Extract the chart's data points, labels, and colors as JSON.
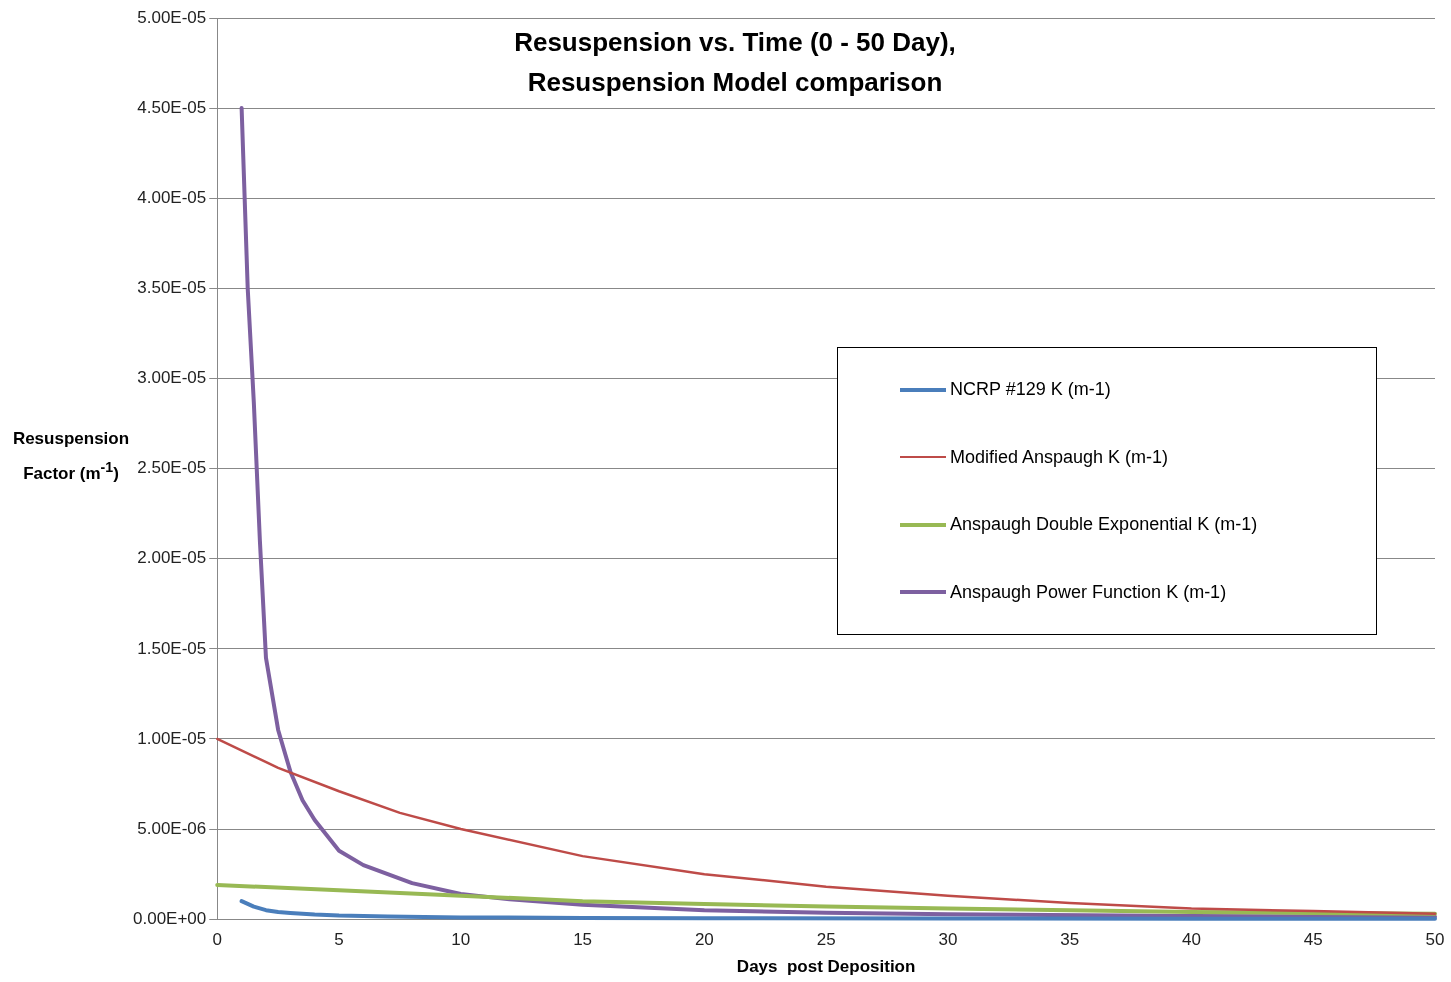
{
  "chart_data": {
    "type": "line",
    "title": "Resuspension vs. Time (0 - 50 Day), Resuspension Model comparison",
    "xlabel": "Days  post Deposition",
    "ylabel": "Resuspension Factor (m$^{-1}$)",
    "xlim": [
      0,
      50
    ],
    "xticks": [
      0,
      5,
      10,
      15,
      20,
      25,
      30,
      35,
      40,
      45,
      50
    ],
    "ylim": [
      0,
      5e-05
    ],
    "yticks": [
      {
        "value": 0,
        "label": "0.00E+00"
      },
      {
        "value": 5e-06,
        "label": "5.00E-06"
      },
      {
        "value": 1e-05,
        "label": "1.00E-05"
      },
      {
        "value": 1.5e-05,
        "label": "1.50E-05"
      },
      {
        "value": 2e-05,
        "label": "2.00E-05"
      },
      {
        "value": 2.5e-05,
        "label": "2.50E-05"
      },
      {
        "value": 3e-05,
        "label": "3.00E-05"
      },
      {
        "value": 3.5e-05,
        "label": "3.50E-05"
      },
      {
        "value": 4e-05,
        "label": "4.00E-05"
      },
      {
        "value": 4.5e-05,
        "label": "4.50E-05"
      },
      {
        "value": 5e-05,
        "label": "5.00E-05"
      }
    ],
    "grid": "y",
    "legend": "right",
    "marker": "none",
    "line_style": "solid",
    "series": [
      {
        "name": "NCRP #129 K (m-1)",
        "color": "#4a7ebb",
        "x": [
          1,
          1.5,
          2,
          2.5,
          3,
          4,
          5,
          7,
          10,
          15,
          20,
          30,
          40,
          50
        ],
        "values": [
          1e-06,
          7e-07,
          5e-07,
          4e-07,
          3.5e-07,
          2.6e-07,
          2e-07,
          1.5e-07,
          1e-07,
          7e-08,
          5e-08,
          4e-08,
          3e-08,
          2e-08
        ]
      },
      {
        "name": "Modified Anspaugh K (m-1)",
        "color": "#be4b48",
        "x": [
          0,
          2.5,
          5,
          7.5,
          10,
          15,
          20,
          25,
          30,
          35,
          40,
          45,
          50
        ],
        "values": [
          1e-05,
          8.4e-06,
          7.1e-06,
          5.9e-06,
          5e-06,
          3.5e-06,
          2.5e-06,
          1.8e-06,
          1.3e-06,
          9e-07,
          6e-07,
          4.5e-07,
          3e-07
        ]
      },
      {
        "name": "Anspaugh Double Exponential K (m-1)",
        "color": "#98b954",
        "x": [
          0,
          5,
          10,
          15,
          20,
          25,
          30,
          35,
          40,
          45,
          50
        ],
        "values": [
          1.9e-06,
          1.6e-06,
          1.3e-06,
          1e-06,
          8.5e-07,
          7e-07,
          6e-07,
          5e-07,
          4e-07,
          3.5e-07,
          3e-07
        ]
      },
      {
        "name": "Anspaugh Power Function K (m-1)",
        "color": "#7d60a0",
        "x": [
          1,
          1.25,
          1.5,
          1.75,
          2,
          2.5,
          3,
          3.5,
          4,
          5,
          6,
          8,
          10,
          12,
          15,
          20,
          25,
          30,
          40,
          50
        ],
        "values": [
          4.5e-05,
          3.5e-05,
          2.87e-05,
          2.1e-05,
          1.45e-05,
          1.05e-05,
          8.2e-06,
          6.6e-06,
          5.5e-06,
          3.8e-06,
          3e-06,
          2e-06,
          1.4e-06,
          1.1e-06,
          8e-07,
          5e-07,
          3.6e-07,
          2.8e-07,
          1.8e-07,
          1.3e-07
        ]
      }
    ]
  }
}
